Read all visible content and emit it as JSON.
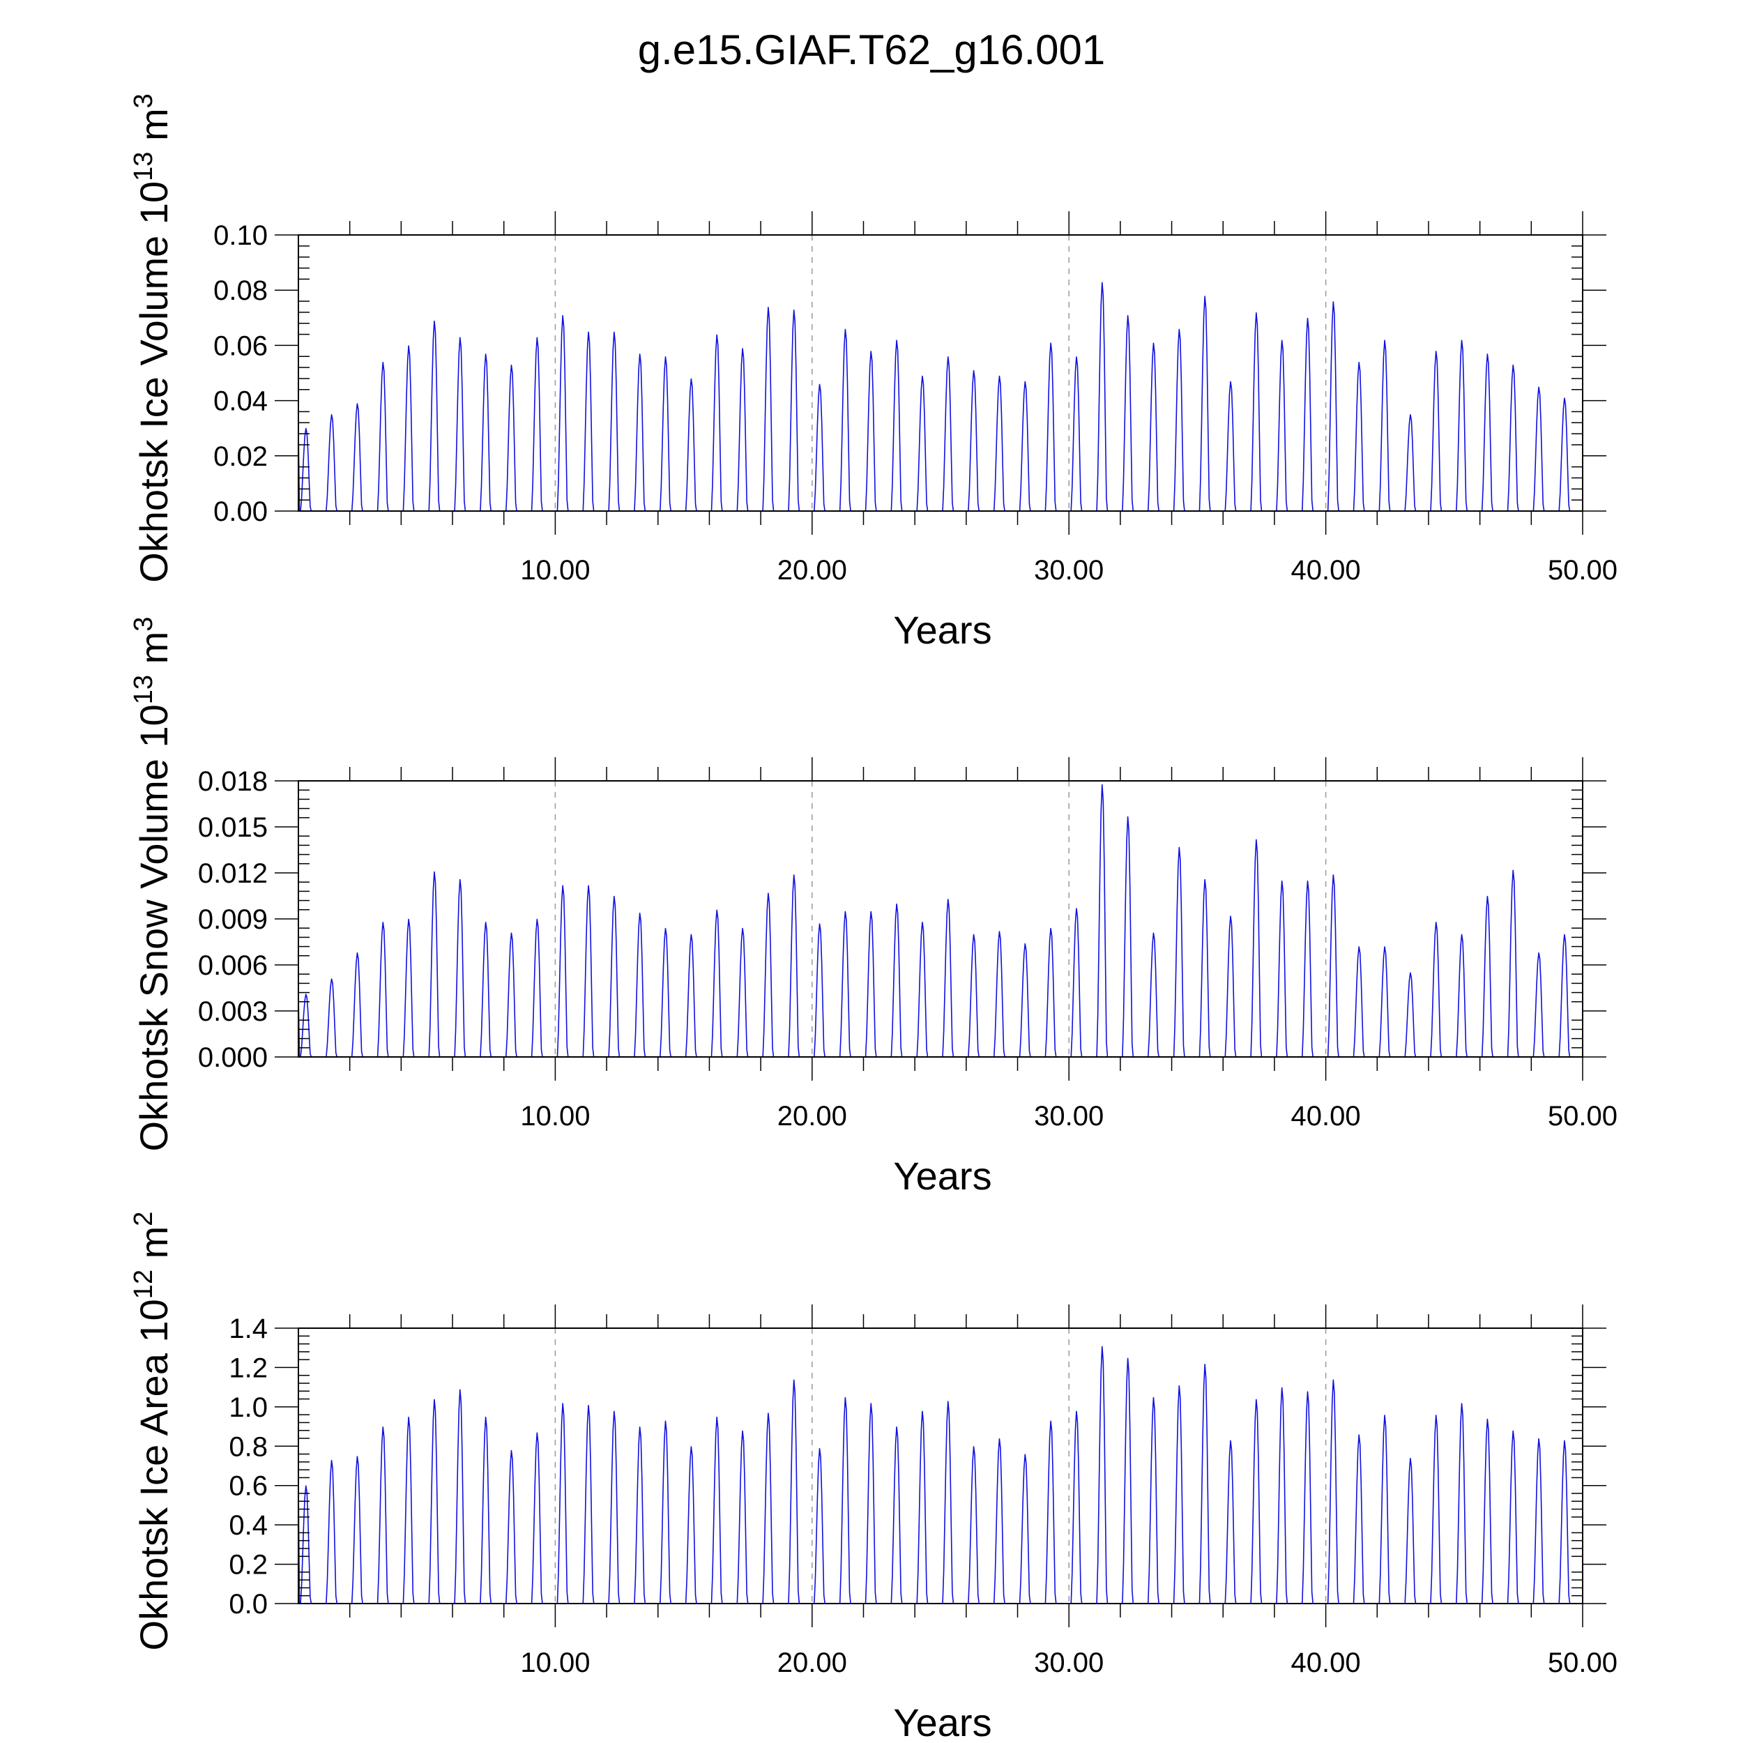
{
  "title": "g.e15.GIAF.T62_g16.001",
  "colors": {
    "series": "#1010e0",
    "grid": "#999999",
    "axis": "#000000"
  },
  "chart_data": [
    {
      "type": "line",
      "name": "ice-volume",
      "title": "g.e15.GIAF.T62_g16.001",
      "xlabel": "Years",
      "ylabel_main": "Okhotsk Ice Volume 10",
      "ylabel_exp": "13",
      "ylabel_unit": " m",
      "ylabel_unit_exp": "3",
      "xlim": [
        0,
        50
      ],
      "ylim": [
        0,
        0.1
      ],
      "x_ticks": [
        10,
        20,
        30,
        40,
        50
      ],
      "x_tick_labels": [
        "10.00",
        "20.00",
        "30.00",
        "40.00",
        "50.00"
      ],
      "y_ticks": [
        0,
        0.02,
        0.04,
        0.06,
        0.08,
        0.1
      ],
      "y_tick_labels": [
        "0.00",
        "0.02",
        "0.04",
        "0.06",
        "0.08",
        "0.10"
      ],
      "grid_x": [
        10,
        20,
        30,
        40
      ],
      "annual_peaks": [
        0.03,
        0.035,
        0.039,
        0.054,
        0.06,
        0.069,
        0.063,
        0.057,
        0.053,
        0.063,
        0.071,
        0.065,
        0.065,
        0.057,
        0.056,
        0.048,
        0.064,
        0.059,
        0.074,
        0.073,
        0.046,
        0.066,
        0.058,
        0.062,
        0.049,
        0.056,
        0.051,
        0.049,
        0.047,
        0.061,
        0.056,
        0.083,
        0.071,
        0.061,
        0.066,
        0.078,
        0.047,
        0.072,
        0.062,
        0.07,
        0.076,
        0.054,
        0.062,
        0.035,
        0.058,
        0.062,
        0.057,
        0.053,
        0.045,
        0.041
      ]
    },
    {
      "type": "line",
      "name": "snow-volume",
      "xlabel": "Years",
      "ylabel_main": "Okhotsk Snow Volume 10",
      "ylabel_exp": "13",
      "ylabel_unit": " m",
      "ylabel_unit_exp": "3",
      "xlim": [
        0,
        50
      ],
      "ylim": [
        0,
        0.018
      ],
      "x_ticks": [
        10,
        20,
        30,
        40,
        50
      ],
      "x_tick_labels": [
        "10.00",
        "20.00",
        "30.00",
        "40.00",
        "50.00"
      ],
      "y_ticks": [
        0,
        0.003,
        0.006,
        0.009,
        0.012,
        0.015,
        0.018
      ],
      "y_tick_labels": [
        "0.000",
        "0.003",
        "0.006",
        "0.009",
        "0.012",
        "0.015",
        "0.018"
      ],
      "grid_x": [
        10,
        20,
        30,
        40
      ],
      "annual_peaks": [
        0.0041,
        0.0051,
        0.0068,
        0.0088,
        0.009,
        0.0121,
        0.0116,
        0.0088,
        0.0081,
        0.009,
        0.0112,
        0.0112,
        0.0105,
        0.0094,
        0.0084,
        0.008,
        0.0096,
        0.0084,
        0.0107,
        0.0119,
        0.0087,
        0.0095,
        0.0095,
        0.01,
        0.0088,
        0.0103,
        0.008,
        0.0082,
        0.0074,
        0.0084,
        0.0097,
        0.0178,
        0.0157,
        0.0081,
        0.0137,
        0.0116,
        0.0092,
        0.0142,
        0.0115,
        0.0115,
        0.0119,
        0.0072,
        0.0072,
        0.0055,
        0.0088,
        0.008,
        0.0105,
        0.0122,
        0.0068,
        0.008
      ]
    },
    {
      "type": "line",
      "name": "ice-area",
      "xlabel": "Years",
      "ylabel_main": "Okhotsk Ice Area 10",
      "ylabel_exp": "12",
      "ylabel_unit": " m",
      "ylabel_unit_exp": "2",
      "xlim": [
        0,
        50
      ],
      "ylim": [
        0,
        1.4
      ],
      "x_ticks": [
        10,
        20,
        30,
        40,
        50
      ],
      "x_tick_labels": [
        "10.00",
        "20.00",
        "30.00",
        "40.00",
        "50.00"
      ],
      "y_ticks": [
        0,
        0.2,
        0.4,
        0.6,
        0.8,
        1.0,
        1.2,
        1.4
      ],
      "y_tick_labels": [
        "0.0",
        "0.2",
        "0.4",
        "0.6",
        "0.8",
        "1.0",
        "1.2",
        "1.4"
      ],
      "grid_x": [
        10,
        20,
        30,
        40
      ],
      "annual_peaks": [
        0.6,
        0.73,
        0.75,
        0.9,
        0.95,
        1.04,
        1.09,
        0.95,
        0.78,
        0.87,
        1.02,
        1.01,
        0.98,
        0.9,
        0.93,
        0.8,
        0.95,
        0.88,
        0.97,
        1.14,
        0.79,
        1.05,
        1.02,
        0.9,
        0.98,
        1.03,
        0.8,
        0.84,
        0.76,
        0.93,
        0.98,
        1.31,
        1.25,
        1.05,
        1.11,
        1.22,
        0.83,
        1.04,
        1.1,
        1.08,
        1.14,
        0.86,
        0.96,
        0.74,
        0.96,
        1.02,
        0.94,
        0.88,
        0.84,
        0.83
      ]
    }
  ]
}
